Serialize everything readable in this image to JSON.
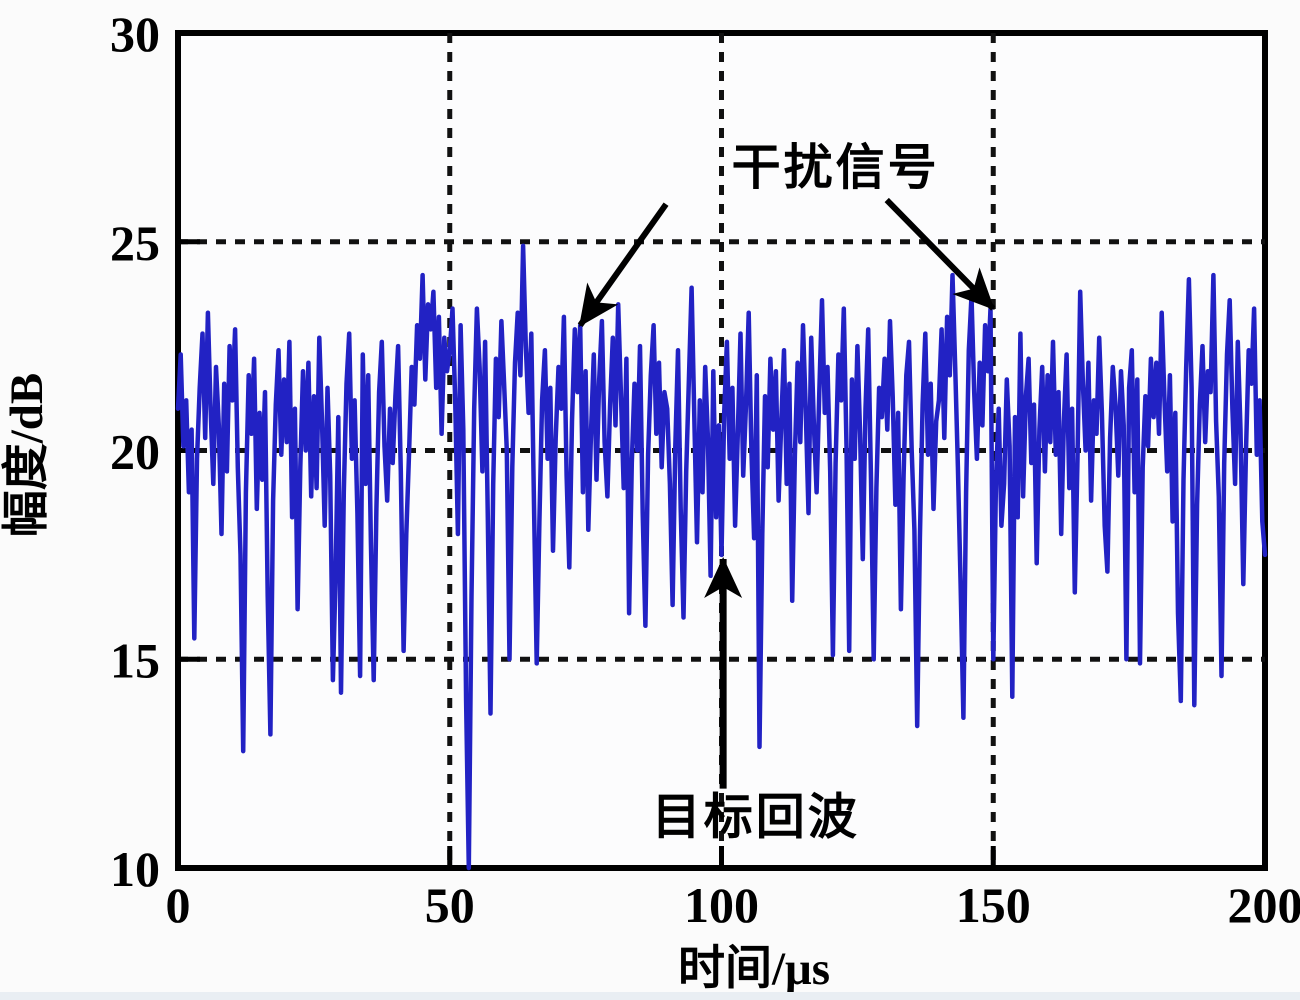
{
  "chart_data": {
    "type": "line",
    "title": "",
    "xlabel": "时间/μs",
    "ylabel": "幅度/dB",
    "xlim": [
      0,
      200
    ],
    "ylim": [
      10,
      30
    ],
    "x_ticks": [
      0,
      50,
      100,
      150,
      200
    ],
    "y_ticks": [
      10,
      15,
      20,
      25,
      30
    ],
    "grid": {
      "style": "dotted",
      "color": "#111111",
      "x_values": [
        50,
        100,
        150
      ],
      "y_values": [
        15,
        20,
        25
      ]
    },
    "legend": "none",
    "series": [
      {
        "name": "received-signal",
        "color": "#2222c4",
        "x_start": 0,
        "x_step": 0.5,
        "y": [
          21.0,
          22.3,
          20.1,
          21.2,
          19.0,
          20.5,
          15.5,
          19.8,
          21.5,
          22.8,
          20.3,
          23.3,
          21.0,
          19.2,
          22.0,
          20.6,
          18.0,
          21.6,
          19.5,
          22.5,
          21.2,
          22.9,
          19.6,
          17.5,
          12.8,
          19.0,
          21.8,
          20.4,
          22.2,
          18.6,
          20.9,
          19.3,
          21.4,
          16.5,
          13.2,
          18.8,
          21.1,
          22.4,
          19.9,
          21.7,
          20.2,
          22.6,
          18.4,
          21.0,
          16.2,
          19.6,
          21.9,
          20.0,
          22.1,
          18.9,
          21.3,
          19.1,
          22.7,
          20.7,
          18.2,
          21.5,
          19.4,
          14.5,
          17.0,
          20.8,
          14.2,
          19.0,
          21.6,
          22.8,
          19.8,
          21.2,
          18.5,
          14.6,
          22.3,
          19.2,
          21.8,
          17.8,
          14.5,
          18.6,
          21.4,
          22.6,
          20.1,
          18.8,
          21.0,
          19.7,
          21.3,
          22.5,
          19.5,
          15.2,
          18.0,
          19.9,
          22.0,
          21.1,
          23.0,
          22.2,
          24.2,
          21.7,
          23.5,
          22.9,
          23.8,
          21.5,
          23.2,
          20.4,
          22.7,
          21.9,
          22.4,
          23.4,
          21.2,
          18.0,
          23.0,
          20.5,
          14.0,
          10.0,
          16.5,
          21.0,
          23.4,
          22.0,
          19.5,
          22.6,
          18.4,
          13.7,
          19.2,
          22.2,
          20.8,
          23.1,
          21.6,
          20.0,
          15.0,
          19.6,
          22.1,
          23.3,
          21.8,
          24.9,
          22.5,
          20.9,
          22.8,
          18.7,
          14.9,
          18.3,
          21.2,
          22.4,
          19.8,
          21.5,
          17.6,
          20.3,
          22.0,
          21.0,
          23.2,
          19.4,
          17.2,
          20.7,
          22.9,
          21.4,
          23.0,
          19.0,
          21.9,
          18.1,
          20.5,
          22.3,
          19.3,
          21.7,
          23.1,
          20.2,
          18.9,
          21.1,
          22.7,
          20.6,
          23.5,
          21.3,
          19.1,
          22.2,
          16.1,
          19.7,
          21.6,
          20.0,
          22.5,
          18.5,
          15.8,
          19.9,
          21.8,
          23.0,
          20.4,
          22.1,
          19.6,
          21.4,
          21.0,
          19.2,
          16.3,
          20.1,
          22.4,
          18.6,
          16.0,
          19.5,
          21.7,
          23.9,
          20.8,
          17.8,
          21.2,
          19.0,
          22.0,
          20.3,
          17.0,
          21.9,
          18.4,
          20.6,
          17.5,
          20.9,
          22.6,
          19.8,
          21.5,
          18.2,
          20.4,
          22.8,
          19.4,
          21.1,
          23.3,
          20.0,
          17.9,
          21.8,
          12.9,
          18.0,
          21.3,
          19.6,
          22.2,
          20.5,
          21.9,
          18.8,
          20.7,
          22.4,
          19.2,
          21.6,
          16.4,
          19.9,
          22.1,
          20.2,
          23.0,
          21.0,
          18.5,
          22.7,
          20.6,
          19.0,
          21.4,
          23.6,
          20.9,
          22.0,
          19.5,
          15.1,
          19.7,
          22.3,
          21.2,
          23.4,
          20.1,
          15.2,
          21.7,
          19.8,
          22.5,
          20.4,
          17.4,
          21.0,
          22.9,
          19.3,
          15.0,
          19.1,
          21.5,
          20.8,
          22.2,
          20.5,
          23.1,
          21.3,
          18.7,
          20.9,
          16.2,
          19.4,
          21.8,
          22.6,
          20.0,
          18.1,
          13.4,
          17.9,
          21.1,
          22.8,
          19.9,
          21.6,
          18.6,
          20.7,
          21.2,
          22.9,
          20.3,
          23.2,
          21.8,
          24.2,
          22.0,
          19.6,
          16.8,
          13.6,
          19.0,
          22.4,
          23.7,
          21.4,
          19.8,
          22.1,
          20.6,
          23.0,
          21.9,
          23.4,
          15.0,
          19.3,
          21.0,
          18.2,
          19.2,
          21.7,
          20.1,
          14.1,
          20.8,
          18.4,
          22.8,
          18.9,
          21.3,
          22.2,
          19.7,
          21.1,
          17.3,
          20.5,
          22.0,
          19.5,
          21.8,
          20.2,
          22.6,
          19.9,
          21.4,
          18.0,
          20.7,
          22.3,
          19.1,
          21.0,
          16.6,
          19.8,
          23.8,
          21.6,
          20.0,
          22.1,
          18.8,
          21.2,
          20.4,
          22.7,
          20.9,
          18.2,
          17.1,
          20.3,
          22.0,
          21.1,
          19.4,
          21.9,
          20.6,
          15.0,
          21.5,
          22.4,
          19.0,
          21.7,
          14.9,
          19.6,
          21.3,
          20.1,
          22.2,
          20.8,
          22.1,
          20.4,
          23.3,
          21.2,
          19.5,
          21.8,
          18.3,
          20.9,
          16.1,
          14.0,
          19.3,
          22.0,
          24.1,
          21.5,
          13.9,
          18.7,
          21.1,
          22.5,
          20.2,
          21.9,
          21.4,
          24.2,
          20.7,
          18.9,
          14.6,
          19.7,
          22.3,
          23.6,
          21.0,
          19.2,
          22.6,
          20.5,
          16.8,
          20.0,
          22.4,
          21.6,
          23.4,
          19.9,
          21.2,
          18.3,
          17.5
        ]
      }
    ],
    "annotations": [
      {
        "id": "interference",
        "text": "干扰信号",
        "x": 121.0,
        "y": 26.8
      },
      {
        "id": "echo",
        "text": "目标回波",
        "x": 106.3,
        "y": 11.25
      }
    ],
    "arrows": [
      {
        "name": "interference-arrow-left",
        "from": [
          89.8,
          25.9
        ],
        "to": [
          74.0,
          23.0
        ],
        "width": 6
      },
      {
        "name": "interference-arrow-right",
        "from": [
          130.4,
          26.0
        ],
        "to": [
          150.0,
          23.4
        ],
        "width": 6
      },
      {
        "name": "target-echo-arrow",
        "from": [
          100.3,
          11.9
        ],
        "to": [
          100.3,
          17.4
        ],
        "width": 7
      }
    ]
  }
}
